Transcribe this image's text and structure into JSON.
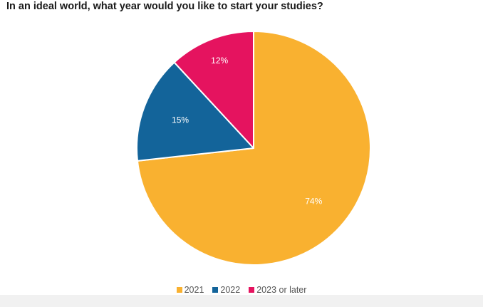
{
  "title": "In an ideal world, what year would you like to start your studies?",
  "chart_data": {
    "type": "pie",
    "title": "In an ideal world, what year would you like to start your studies?",
    "slices": [
      {
        "label": "2021",
        "value": 74,
        "display": "74%",
        "color": "#f9b130"
      },
      {
        "label": "2022",
        "value": 15,
        "display": "15%",
        "color": "#13649a"
      },
      {
        "label": "2023 or later",
        "value": 12,
        "display": "12%",
        "color": "#e5135f"
      }
    ],
    "legend_position": "bottom"
  }
}
